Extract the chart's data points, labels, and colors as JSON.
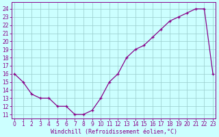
{
  "hours": [
    0,
    1,
    2,
    3,
    4,
    5,
    6,
    7,
    8,
    9,
    10,
    11,
    12,
    13,
    14,
    15,
    16,
    17,
    18,
    19,
    20,
    21,
    22,
    23
  ],
  "temps": [
    16,
    15,
    13.5,
    13,
    13,
    12,
    12,
    11,
    11,
    11.5,
    13,
    15,
    16,
    18,
    19,
    19.5,
    20.5,
    21.5,
    22.5,
    23,
    23.5,
    24,
    24,
    16
  ],
  "line_color": "#880088",
  "marker_color": "#880088",
  "bg_color": "#ccffff",
  "grid_color": "#99cccc",
  "xlabel": "Windchill (Refroidissement éolien,°C)",
  "ylim_min": 10.5,
  "ylim_max": 24.8,
  "xlim_min": -0.3,
  "xlim_max": 23.3,
  "yticks": [
    11,
    12,
    13,
    14,
    15,
    16,
    17,
    18,
    19,
    20,
    21,
    22,
    23,
    24
  ],
  "xticks": [
    0,
    1,
    2,
    3,
    4,
    5,
    6,
    7,
    8,
    9,
    10,
    11,
    12,
    13,
    14,
    15,
    16,
    17,
    18,
    19,
    20,
    21,
    22,
    23
  ],
  "tick_fontsize": 5.5,
  "xlabel_fontsize": 6.0,
  "marker_size": 3.5,
  "line_width": 0.9
}
